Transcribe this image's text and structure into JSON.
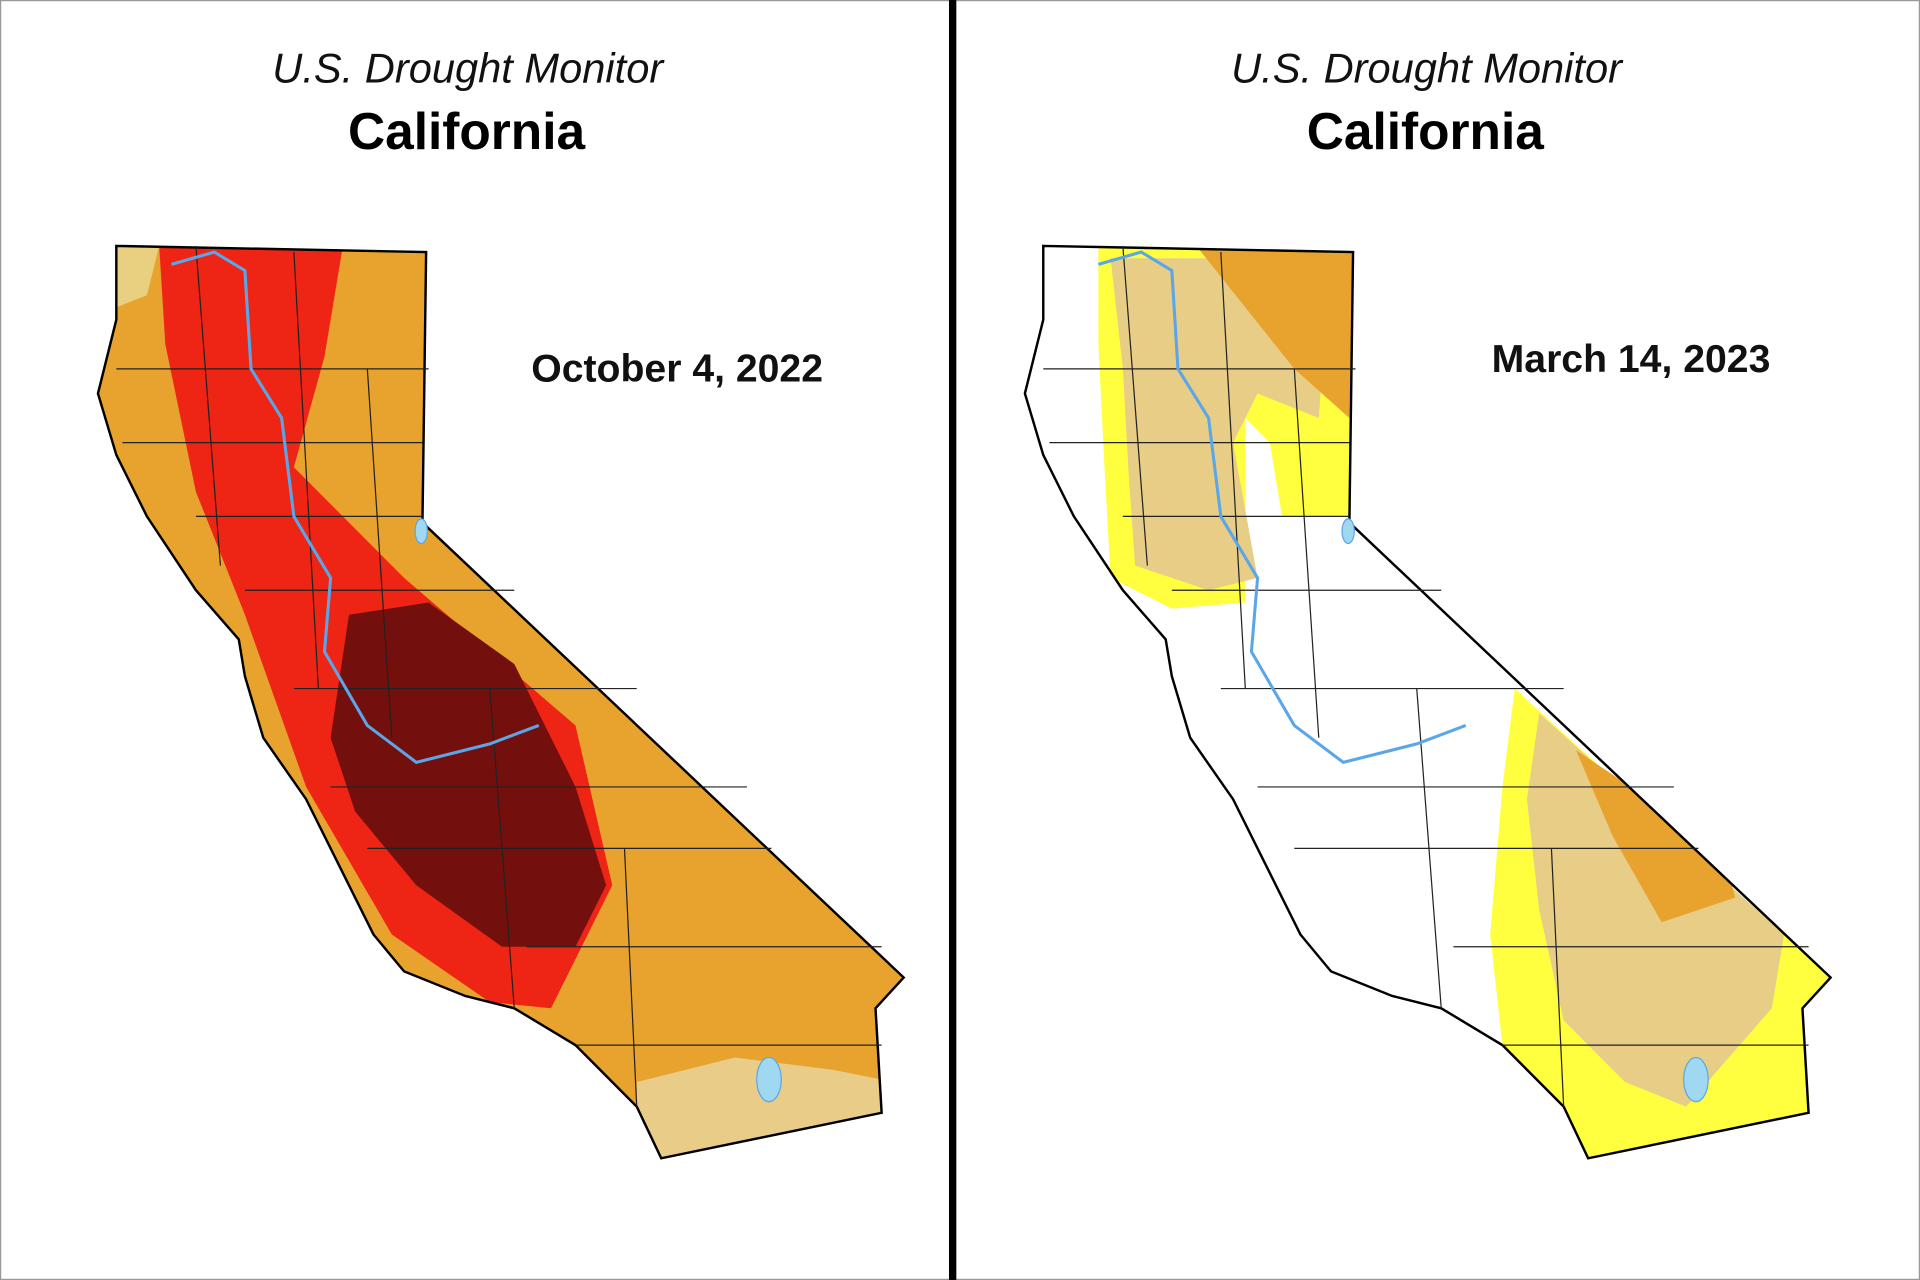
{
  "panels": [
    {
      "subtitle": "U.S. Drought Monitor",
      "title": "California",
      "date": "October 4, 2022"
    },
    {
      "subtitle": "U.S. Drought Monitor",
      "title": "California",
      "date": "March 14, 2023"
    }
  ]
}
